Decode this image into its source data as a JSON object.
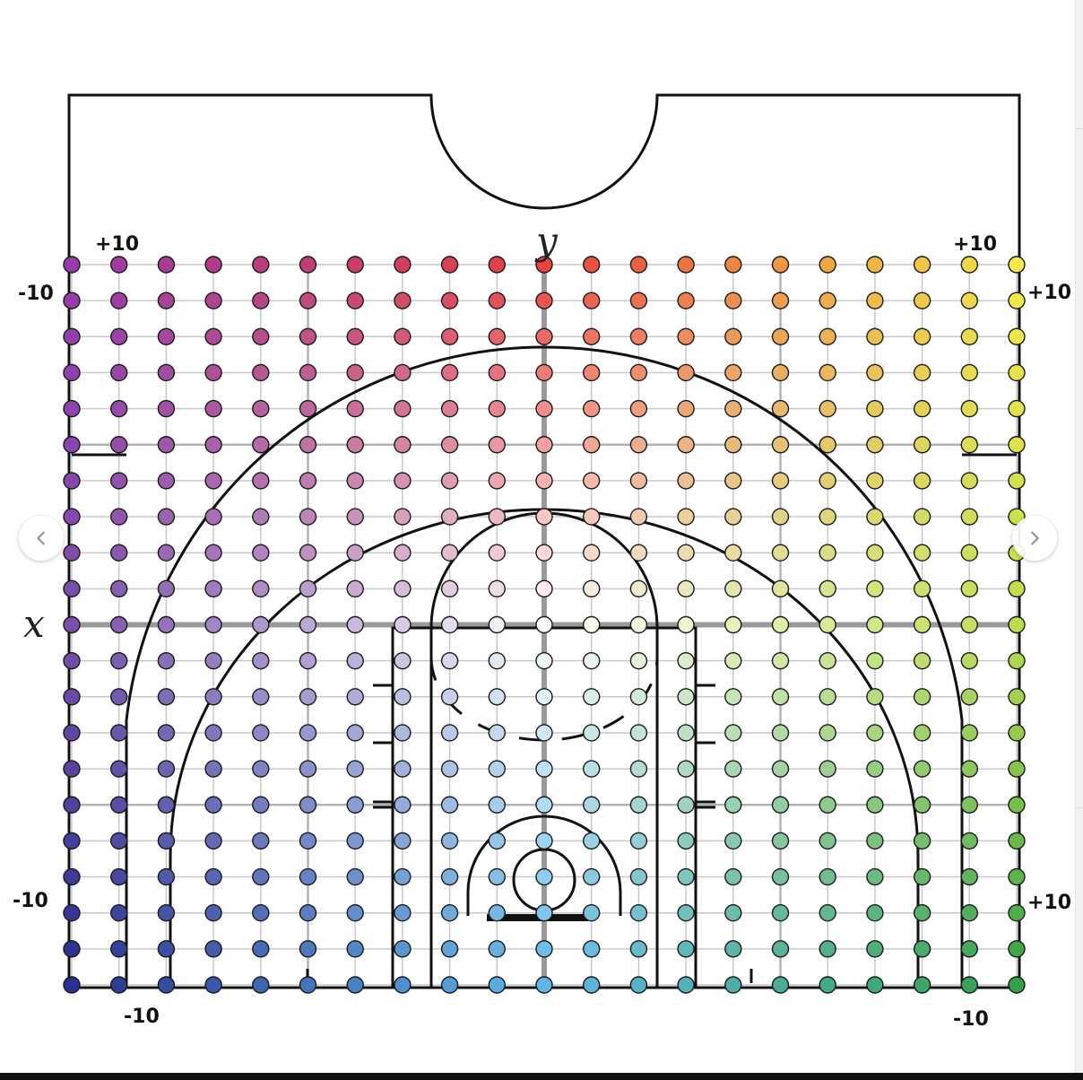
{
  "diagram": {
    "axis_x_name": "x",
    "axis_y_name": "y",
    "corner_labels": {
      "top_left_inner": "+10",
      "top_left_outer": "-10",
      "top_right_inner": "+10",
      "top_right_outer": "+10",
      "bottom_left_outer": "-10",
      "bottom_left_inner": "-10",
      "bottom_right_outer": "+10",
      "bottom_right_inner": "-10"
    },
    "grid": {
      "columns": 21,
      "rows": 21,
      "x_range": [
        -10,
        10
      ],
      "y_range": [
        -10,
        10
      ]
    },
    "corner_colors": {
      "top_left": "#9a3bab",
      "top_center": "#e8413e",
      "top_right": "#f5e84a",
      "center": "#ffffff",
      "bottom_left": "#27318f",
      "bottom_center": "#5fb7e8",
      "bottom_right": "#33a14a"
    },
    "line_color": "#111111",
    "grid_color": "#c9c9c9",
    "axis_color": "#9a9a9a"
  },
  "navigation": {
    "prev_icon": "chevron-left-icon",
    "next_icon": "chevron-right-icon"
  }
}
